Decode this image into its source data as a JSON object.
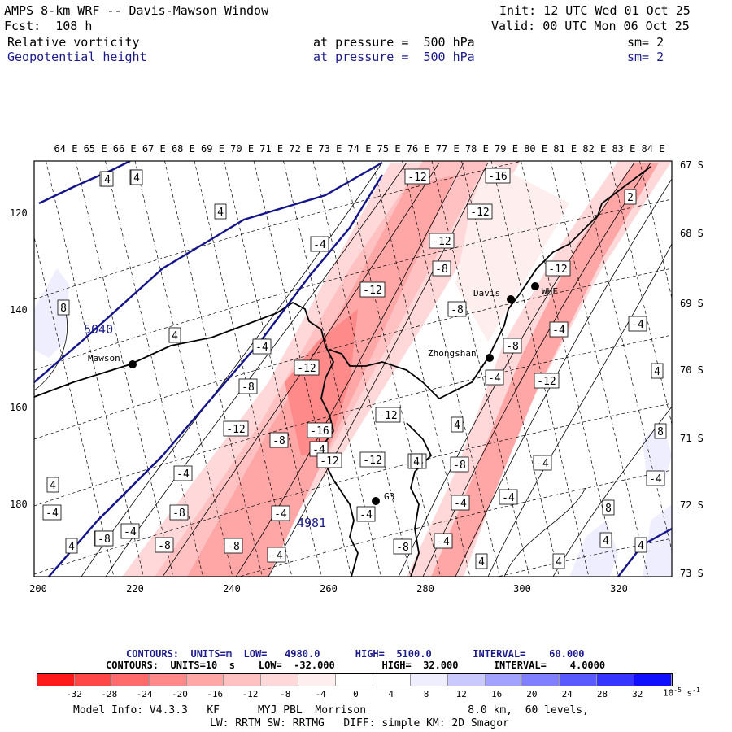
{
  "header": {
    "title": "AMPS 8-km WRF -- Davis-Mawson Window",
    "init": "Init: 12 UTC Wed 01 Oct 25",
    "forecast": "Fcst:  108 h",
    "valid": "Valid: 00 UTC Mon 06 Oct 25",
    "field1": {
      "name": "Relative vorticity",
      "level": "at pressure =  500 hPa",
      "sm": "sm= 2"
    },
    "field2": {
      "name": "Geopotential height",
      "level": "at pressure =  500 hPa",
      "sm": "sm= 2"
    }
  },
  "map": {
    "lon_labels": [
      "64 E",
      "65 E",
      "66 E",
      "67 E",
      "68 E",
      "69 E",
      "70 E",
      "71 E",
      "72 E",
      "73 E",
      "74 E",
      "75 E",
      "76 E",
      "77 E",
      "78 E",
      "79 E",
      "80 E",
      "81 E",
      "82 E",
      "83 E",
      "84 E"
    ],
    "lat_labels": [
      "67 S",
      "68 S",
      "69 S",
      "70 S",
      "71 S",
      "72 S",
      "73 S"
    ],
    "x_ticks": [
      "200",
      "220",
      "240",
      "260",
      "280",
      "300",
      "320"
    ],
    "y_ticks": [
      "120",
      "140",
      "160",
      "180"
    ],
    "stations": [
      {
        "name": "Mawson"
      },
      {
        "name": "Davis"
      },
      {
        "name": "WHF"
      },
      {
        "name": "Zhongshan"
      },
      {
        "name": "G3"
      }
    ],
    "height_labels": [
      "5040",
      "4981"
    ],
    "vort_labels": [
      "4",
      "4",
      "4",
      "-4",
      "8",
      "4",
      "-4",
      "-12",
      "-12",
      "-12",
      "-16",
      "-12",
      "-8",
      "-12",
      "-8",
      "-12",
      "-12",
      "2",
      "-8",
      "-4",
      "-4",
      "-4",
      "-12",
      "-8",
      "-16",
      "-12",
      "-12",
      "-4",
      "-8",
      "-8",
      "-4",
      "-8",
      "-4",
      "-4",
      "4",
      "-4",
      "-4",
      "-4",
      "8",
      "-4",
      "-4",
      "-4",
      "-8",
      "-12",
      "-8",
      "-4",
      "-8",
      "-8",
      "4",
      "4",
      "4",
      "4",
      "4",
      "8",
      "4",
      "4",
      "-4",
      "-4",
      "-4",
      "4",
      "4",
      "4"
    ]
  },
  "contours": {
    "line1": {
      "label": "CONTOURS:  UNITS=m  LOW=   4980.0      HIGH=  5100.0       INTERVAL=    60.000"
    },
    "line2": {
      "label": "CONTOURS:  UNITS=10  s    LOW=  -32.000        HIGH=  32.000      INTERVAL=    4.0000"
    }
  },
  "colorbar": {
    "labels": [
      "-32",
      "-28",
      "-24",
      "-20",
      "-16",
      "-12",
      "-8",
      "-4",
      "0",
      "4",
      "8",
      "12",
      "16",
      "20",
      "24",
      "28",
      "32"
    ],
    "units": "10",
    "units_exp": "-5",
    "units_s": "s",
    "units_s_exp": "-1",
    "colors": [
      "#ff1a1a",
      "#ff4747",
      "#ff6b6b",
      "#ff8a8a",
      "#ffa6a6",
      "#ffc1c1",
      "#ffd9d9",
      "#ffeeee",
      "#ffffff",
      "#ffffff",
      "#eeeeff",
      "#c9c9ff",
      "#a3a3ff",
      "#7f7fff",
      "#5a5aff",
      "#3535ff",
      "#1010ff"
    ]
  },
  "footer": {
    "line1": "Model Info: V4.3.3   KF      MYJ PBL  Morrison                8.0 km,  60 levels,",
    "line2": "LW: RRTM SW: RRTMG   DIFF: simple KM: 2D Smagor"
  }
}
